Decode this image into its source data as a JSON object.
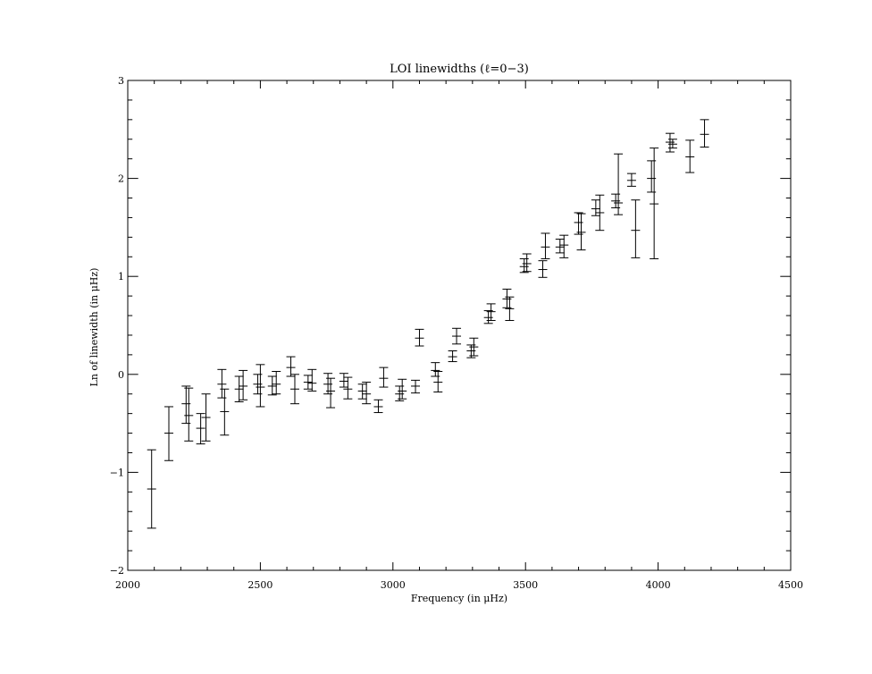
{
  "chart_data": {
    "type": "scatter",
    "title": "LOI linewidths (ℓ=0−3)",
    "xlabel": "Frequency (in μHz)",
    "ylabel": "Ln of linewidth (in μHz)",
    "xlim": [
      2000,
      4500
    ],
    "ylim": [
      -2,
      3
    ],
    "xticks": [
      2000,
      2500,
      3000,
      3500,
      4000,
      4500
    ],
    "yticks": [
      -2,
      -1,
      0,
      1,
      2,
      3
    ],
    "xtick_labels": [
      "2000",
      "2500",
      "3000",
      "3500",
      "4000",
      "4500"
    ],
    "ytick_labels": [
      "−2",
      "−1",
      "0",
      "1",
      "2",
      "3"
    ],
    "x_minor_step": 100,
    "y_minor_step": 0.2,
    "grid": false,
    "error_bars": true,
    "series": [
      {
        "points": [
          {
            "x": 2090,
            "y": -1.17,
            "lo": -1.57,
            "hi": -0.77
          },
          {
            "x": 2155,
            "y": -0.6,
            "lo": -0.88,
            "hi": -0.33
          },
          {
            "x": 2220,
            "y": -0.3,
            "lo": -0.5,
            "hi": -0.12
          },
          {
            "x": 2230,
            "y": -0.42,
            "lo": -0.68,
            "hi": -0.14
          },
          {
            "x": 2275,
            "y": -0.55,
            "lo": -0.71,
            "hi": -0.4
          },
          {
            "x": 2295,
            "y": -0.44,
            "lo": -0.68,
            "hi": -0.2
          },
          {
            "x": 2355,
            "y": -0.1,
            "lo": -0.24,
            "hi": 0.05
          },
          {
            "x": 2365,
            "y": -0.38,
            "lo": -0.62,
            "hi": -0.15
          },
          {
            "x": 2420,
            "y": -0.15,
            "lo": -0.28,
            "hi": -0.02
          },
          {
            "x": 2435,
            "y": -0.12,
            "lo": -0.26,
            "hi": 0.04
          },
          {
            "x": 2490,
            "y": -0.1,
            "lo": -0.2,
            "hi": 0.0
          },
          {
            "x": 2500,
            "y": -0.13,
            "lo": -0.33,
            "hi": 0.1
          },
          {
            "x": 2545,
            "y": -0.12,
            "lo": -0.21,
            "hi": -0.02
          },
          {
            "x": 2560,
            "y": -0.1,
            "lo": -0.2,
            "hi": 0.03
          },
          {
            "x": 2615,
            "y": 0.07,
            "lo": -0.02,
            "hi": 0.18
          },
          {
            "x": 2630,
            "y": -0.15,
            "lo": -0.3,
            "hi": 0.0
          },
          {
            "x": 2680,
            "y": -0.08,
            "lo": -0.15,
            "hi": -0.01
          },
          {
            "x": 2695,
            "y": -0.09,
            "lo": -0.17,
            "hi": 0.05
          },
          {
            "x": 2755,
            "y": -0.1,
            "lo": -0.2,
            "hi": 0.01
          },
          {
            "x": 2765,
            "y": -0.17,
            "lo": -0.34,
            "hi": -0.04
          },
          {
            "x": 2815,
            "y": -0.07,
            "lo": -0.13,
            "hi": 0.01
          },
          {
            "x": 2830,
            "y": -0.15,
            "lo": -0.25,
            "hi": -0.03
          },
          {
            "x": 2885,
            "y": -0.17,
            "lo": -0.25,
            "hi": -0.1
          },
          {
            "x": 2900,
            "y": -0.2,
            "lo": -0.3,
            "hi": -0.08
          },
          {
            "x": 2945,
            "y": -0.33,
            "lo": -0.39,
            "hi": -0.26
          },
          {
            "x": 2965,
            "y": -0.04,
            "lo": -0.13,
            "hi": 0.07
          },
          {
            "x": 3025,
            "y": -0.2,
            "lo": -0.27,
            "hi": -0.12
          },
          {
            "x": 3035,
            "y": -0.17,
            "lo": -0.25,
            "hi": -0.05
          },
          {
            "x": 3085,
            "y": -0.12,
            "lo": -0.19,
            "hi": -0.06
          },
          {
            "x": 3100,
            "y": 0.37,
            "lo": 0.29,
            "hi": 0.46
          },
          {
            "x": 3160,
            "y": 0.04,
            "lo": -0.02,
            "hi": 0.12
          },
          {
            "x": 3170,
            "y": -0.08,
            "lo": -0.18,
            "hi": 0.03
          },
          {
            "x": 3225,
            "y": 0.18,
            "lo": 0.13,
            "hi": 0.24
          },
          {
            "x": 3240,
            "y": 0.39,
            "lo": 0.31,
            "hi": 0.47
          },
          {
            "x": 3295,
            "y": 0.24,
            "lo": 0.17,
            "hi": 0.3
          },
          {
            "x": 3305,
            "y": 0.28,
            "lo": 0.19,
            "hi": 0.37
          },
          {
            "x": 3360,
            "y": 0.58,
            "lo": 0.52,
            "hi": 0.65
          },
          {
            "x": 3370,
            "y": 0.64,
            "lo": 0.55,
            "hi": 0.72
          },
          {
            "x": 3430,
            "y": 0.77,
            "lo": 0.68,
            "hi": 0.87
          },
          {
            "x": 3440,
            "y": 0.67,
            "lo": 0.55,
            "hi": 0.79
          },
          {
            "x": 3495,
            "y": 1.1,
            "lo": 1.04,
            "hi": 1.18
          },
          {
            "x": 3505,
            "y": 1.13,
            "lo": 1.05,
            "hi": 1.23
          },
          {
            "x": 3565,
            "y": 1.07,
            "lo": 0.99,
            "hi": 1.16
          },
          {
            "x": 3575,
            "y": 1.3,
            "lo": 1.18,
            "hi": 1.44
          },
          {
            "x": 3630,
            "y": 1.3,
            "lo": 1.24,
            "hi": 1.38
          },
          {
            "x": 3645,
            "y": 1.32,
            "lo": 1.19,
            "hi": 1.42
          },
          {
            "x": 3700,
            "y": 1.55,
            "lo": 1.43,
            "hi": 1.65
          },
          {
            "x": 3710,
            "y": 1.45,
            "lo": 1.27,
            "hi": 1.64
          },
          {
            "x": 3765,
            "y": 1.69,
            "lo": 1.62,
            "hi": 1.78
          },
          {
            "x": 3780,
            "y": 1.65,
            "lo": 1.47,
            "hi": 1.83
          },
          {
            "x": 3840,
            "y": 1.77,
            "lo": 1.7,
            "hi": 1.84
          },
          {
            "x": 3850,
            "y": 1.75,
            "lo": 1.63,
            "hi": 2.25
          },
          {
            "x": 3900,
            "y": 1.98,
            "lo": 1.92,
            "hi": 2.05
          },
          {
            "x": 3915,
            "y": 1.47,
            "lo": 1.19,
            "hi": 1.78
          },
          {
            "x": 3975,
            "y": 2.0,
            "lo": 1.86,
            "hi": 2.18
          },
          {
            "x": 3985,
            "y": 1.74,
            "lo": 1.18,
            "hi": 2.31
          },
          {
            "x": 4045,
            "y": 2.37,
            "lo": 2.27,
            "hi": 2.46
          },
          {
            "x": 4055,
            "y": 2.35,
            "lo": 2.31,
            "hi": 2.4
          },
          {
            "x": 4120,
            "y": 2.22,
            "lo": 2.06,
            "hi": 2.39
          },
          {
            "x": 4175,
            "y": 2.45,
            "lo": 2.32,
            "hi": 2.6
          }
        ]
      }
    ]
  }
}
